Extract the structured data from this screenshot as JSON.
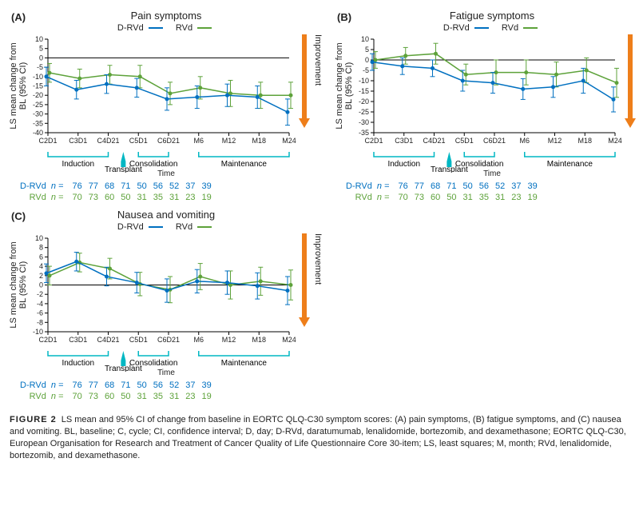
{
  "colors": {
    "drvd": "#0070c0",
    "rvd": "#5da23a",
    "arrow": "#ee7e1a",
    "axis": "#000000",
    "bracket": "#00b7c3",
    "text": "#222222"
  },
  "fonts": {
    "axis_label": 11,
    "tick": 9,
    "legend": 11,
    "title": 13
  },
  "common": {
    "x_categories": [
      "C2D1",
      "C3D1",
      "C4D21",
      "C5D1",
      "C6D21",
      "M6",
      "M12",
      "M18",
      "M24"
    ],
    "x_axis_title": "Time",
    "y_axis_title": "LS mean change from\nBL (95% CI)",
    "legend": {
      "drvd": "D-RVd",
      "rvd": "RVd"
    },
    "side_label": "Improvement",
    "phases": [
      {
        "label": "Induction",
        "from": 0,
        "to": 2
      },
      {
        "label": "Transplant",
        "arrow_at": 2.5
      },
      {
        "label": "Consolidation",
        "from": 3,
        "to": 4
      },
      {
        "label": "Maintenance",
        "from": 5,
        "to": 8
      }
    ],
    "n_table": {
      "drvd_label": "D-RVd",
      "rvd_label": "RVd",
      "drvd": [
        76,
        77,
        68,
        71,
        50,
        56,
        52,
        37,
        39
      ],
      "rvd": [
        70,
        73,
        60,
        50,
        31,
        35,
        31,
        23,
        19
      ]
    }
  },
  "panels": [
    {
      "key": "A",
      "title": "Pain symptoms",
      "ylim": [
        -40,
        10
      ],
      "ytick_step": 5,
      "arrow_dir": "down",
      "series": {
        "drvd": {
          "y": [
            -10,
            -17,
            -14,
            -16,
            -22,
            -21,
            -20,
            -21,
            -29
          ],
          "err": [
            5,
            5,
            5,
            5,
            6,
            6,
            6,
            6,
            7
          ]
        },
        "rvd": {
          "y": [
            -8,
            -11,
            -9,
            -10,
            -19,
            -16,
            -19,
            -20,
            -20
          ],
          "err": [
            5,
            5,
            5,
            6,
            6,
            6,
            7,
            7,
            7
          ]
        }
      }
    },
    {
      "key": "B",
      "title": "Fatigue symptoms",
      "ylim": [
        -35,
        10
      ],
      "ytick_step": 5,
      "arrow_dir": "down",
      "series": {
        "drvd": {
          "y": [
            -1,
            -3,
            -4,
            -10,
            -11,
            -14,
            -13,
            -10,
            -19
          ],
          "err": [
            4,
            4,
            4,
            5,
            5,
            5,
            5,
            6,
            6
          ]
        },
        "rvd": {
          "y": [
            0,
            2,
            3,
            -7,
            -6,
            -6,
            -7,
            -5,
            -11
          ],
          "err": [
            4,
            4,
            5,
            5,
            6,
            6,
            6,
            6,
            7
          ]
        }
      }
    },
    {
      "key": "C",
      "title": "Nausea and vomiting",
      "ylim": [
        -10,
        10
      ],
      "ytick_step": 2,
      "arrow_dir": "down",
      "series": {
        "drvd": {
          "y": [
            2.5,
            5.0,
            1.8,
            0.5,
            -1.2,
            0.8,
            0.5,
            -0.2,
            -1.2
          ],
          "err": [
            2,
            2,
            2,
            2.2,
            2.5,
            2.5,
            2.5,
            2.8,
            3
          ]
        },
        "rvd": {
          "y": [
            2.0,
            4.8,
            3.5,
            0.2,
            -1.0,
            1.8,
            0.0,
            0.8,
            0.0
          ],
          "err": [
            2,
            2,
            2.2,
            2.5,
            2.8,
            2.8,
            3,
            3,
            3.2
          ]
        }
      }
    }
  ],
  "caption": {
    "label": "FIGURE 2",
    "text": "LS mean and 95% CI of change from baseline in EORTC QLQ-C30 symptom scores: (A) pain symptoms, (B) fatigue symptoms, and (C) nausea and vomiting. BL, baseline; C, cycle; CI, confidence interval; D, day; D-RVd, daratumumab, lenalidomide, bortezomib, and dexamethasone; EORTC QLQ-C30, European Organisation for Research and Treatment of Cancer Quality of Life Questionnaire Core 30-item; LS, least squares; M, month; RVd, lenalidomide, bortezomib, and dexamethasone."
  }
}
